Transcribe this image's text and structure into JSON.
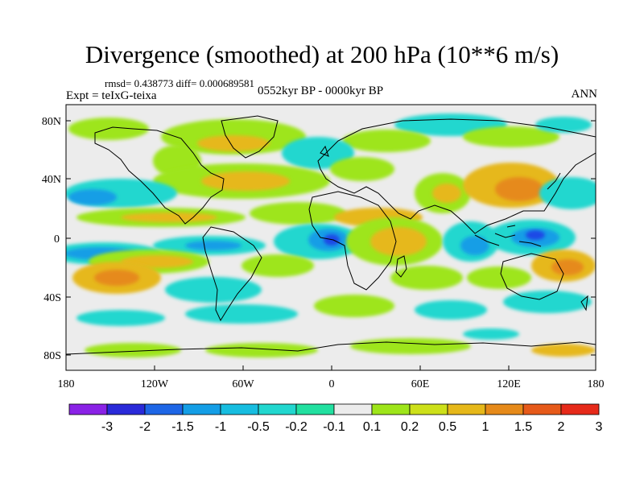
{
  "title": "Divergence (smoothed) at 200 hPa (10**6 m/s)",
  "stats": "rmsd= 0.438773 diff= 0.000689581",
  "experiment": "Expt = teIxG-teixa",
  "period": "0552kyr BP - 0000kyr BP",
  "season": "ANN",
  "lat_ticks": [
    "80N",
    "40N",
    "0",
    "40S",
    "80S"
  ],
  "lon_ticks": [
    "180",
    "120W",
    "60W",
    "0",
    "60E",
    "120E",
    "180"
  ],
  "colorbar": {
    "labels": [
      "-3",
      "-2",
      "-1.5",
      "-1",
      "-0.5",
      "-0.2",
      "-0.1",
      "0.1",
      "0.2",
      "0.5",
      "1",
      "1.5",
      "2",
      "3"
    ],
    "colors": [
      "#8a22e6",
      "#2a2ad9",
      "#1e66e6",
      "#149ee6",
      "#17bde0",
      "#22d7cf",
      "#22e0a0",
      "#ececec",
      "#9ee51a",
      "#cde01a",
      "#e6b81a",
      "#e68a1a",
      "#e65a1a",
      "#e62a1a"
    ]
  },
  "colors": {
    "background": "#ececec",
    "neg_strong": "#1e4ae6",
    "neg_mid": "#149ee6",
    "neg_weak": "#22d7cf",
    "pos_weak": "#9ee51a",
    "pos_mid": "#e6b81a",
    "pos_strong": "#e68a1a",
    "coastline": "#000000"
  }
}
